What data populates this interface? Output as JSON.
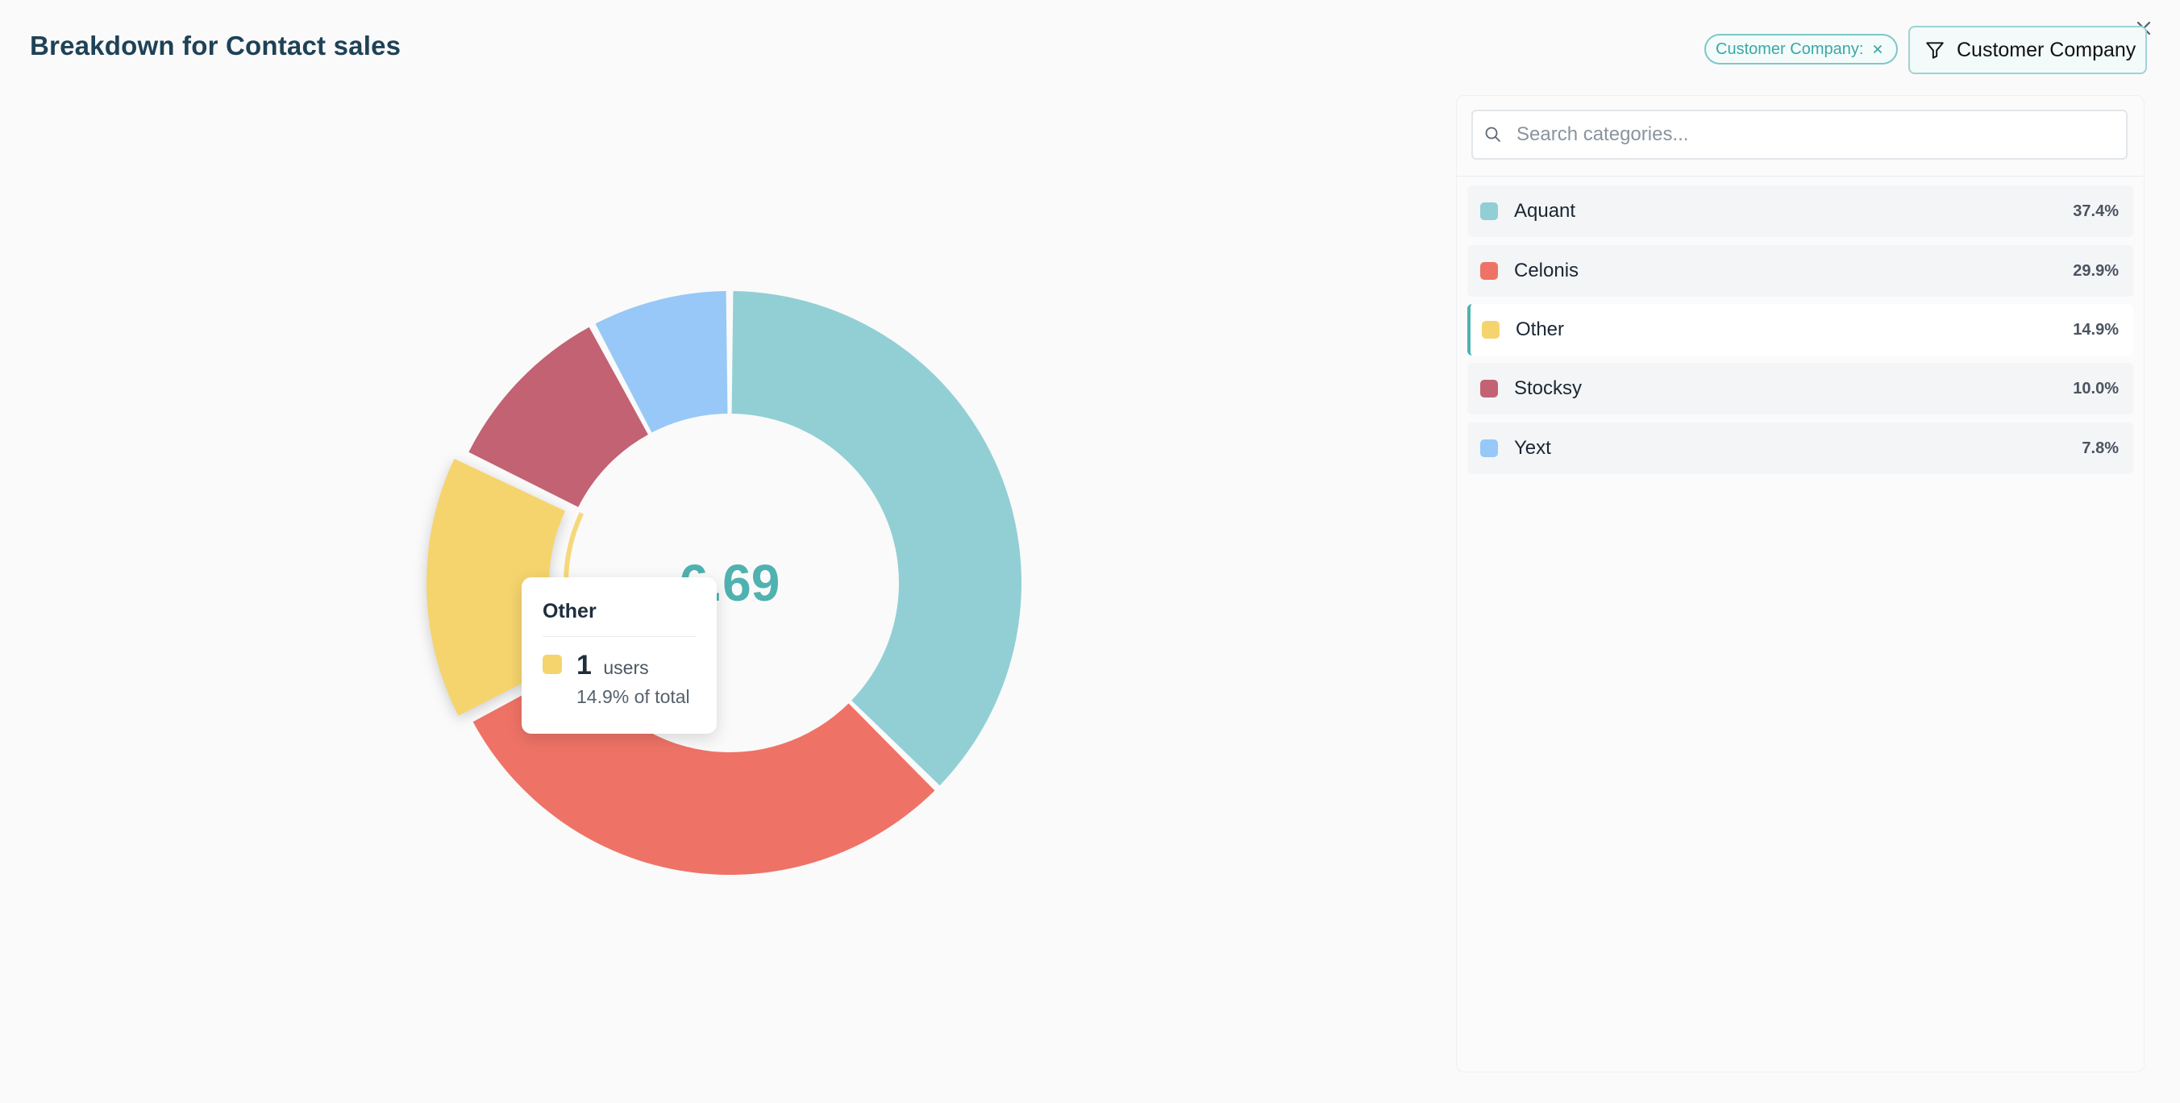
{
  "header": {
    "title": "Breakdown for Contact sales",
    "filter_chip_label": "Customer Company:",
    "filter_button_label": "Customer Company"
  },
  "colors": {
    "accent": "#4fb2b0",
    "aquant": "#91cfd5",
    "celonis": "#ee7366",
    "other": "#f5d46e",
    "stocksy": "#c26273",
    "yext": "#97c8f7"
  },
  "chart": {
    "center_value": "6.69"
  },
  "tooltip": {
    "title": "Other",
    "value": "1",
    "unit": "users",
    "subtext": "14.9% of total"
  },
  "search": {
    "placeholder": "Search categories..."
  },
  "legend": {
    "items": [
      {
        "label": "Aquant",
        "pct": "37.4%",
        "color": "#91cfd5"
      },
      {
        "label": "Celonis",
        "pct": "29.9%",
        "color": "#ee7366"
      },
      {
        "label": "Other",
        "pct": "14.9%",
        "color": "#f5d46e"
      },
      {
        "label": "Stocksy",
        "pct": "10.0%",
        "color": "#c26273"
      },
      {
        "label": "Yext",
        "pct": "7.8%",
        "color": "#97c8f7"
      }
    ]
  },
  "chart_data": {
    "type": "pie",
    "categories": [
      "Aquant",
      "Celonis",
      "Other",
      "Stocksy",
      "Yext"
    ],
    "values": [
      37.4,
      29.9,
      14.9,
      10.0,
      7.8
    ],
    "highlighted": "Other",
    "center_label": "6.69"
  }
}
